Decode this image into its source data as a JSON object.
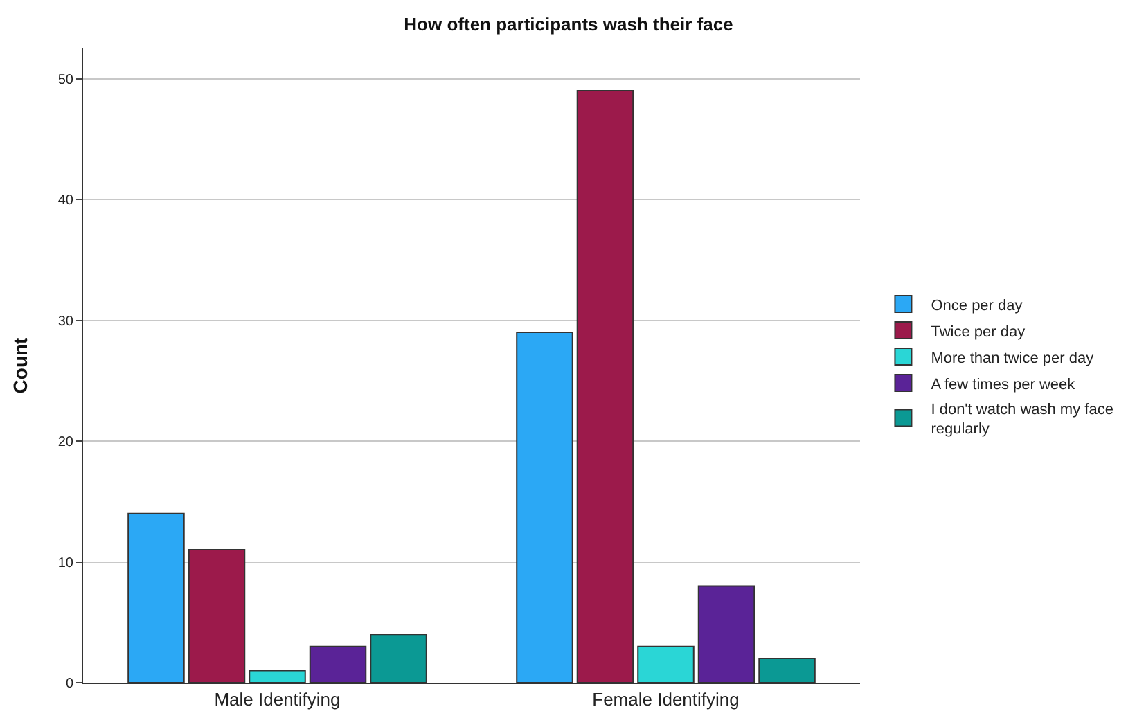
{
  "chart_data": {
    "type": "bar",
    "title": "How often participants wash their face",
    "ylabel": "Count",
    "categories": [
      "Male Identifying",
      "Female Identifying"
    ],
    "series": [
      {
        "name": "Once per day",
        "color": "#2ba8f5",
        "values": [
          14,
          29
        ]
      },
      {
        "name": "Twice per day",
        "color": "#9c1a4b",
        "values": [
          11,
          49
        ]
      },
      {
        "name": "More than twice per day",
        "color": "#2ad6d6",
        "values": [
          1,
          3
        ]
      },
      {
        "name": "A few times per week",
        "color": "#5a2397",
        "values": [
          3,
          8
        ]
      },
      {
        "name": "I don't watch wash my face regularly",
        "color": "#0b9994",
        "values": [
          4,
          2
        ]
      }
    ],
    "ylim": [
      0,
      52.5
    ],
    "yticks": [
      0,
      10,
      20,
      30,
      40,
      50
    ],
    "grid": "y",
    "legend": "right"
  }
}
